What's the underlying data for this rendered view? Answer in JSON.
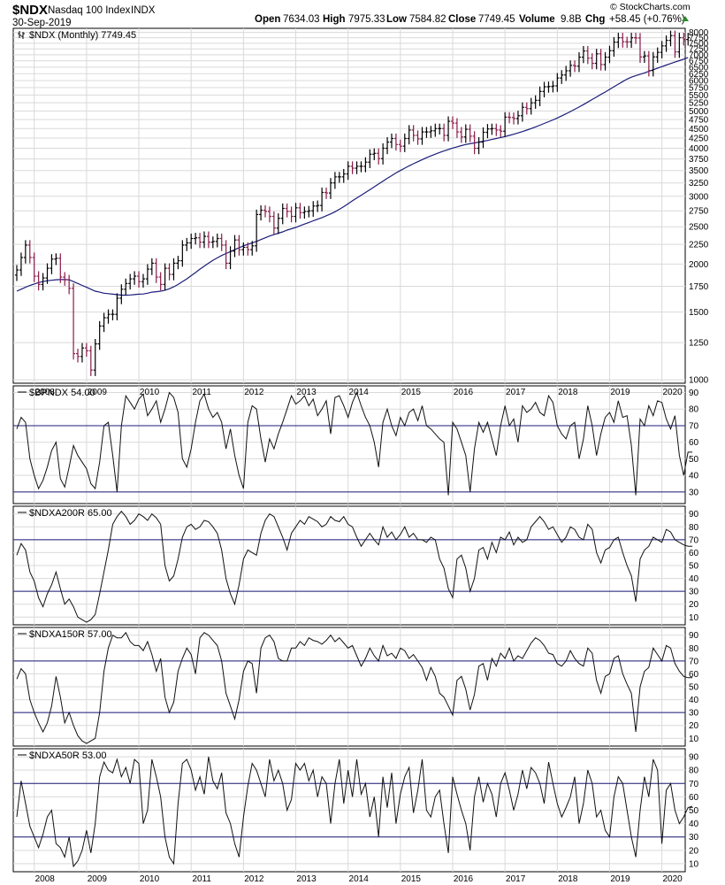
{
  "header": {
    "symbol": "$NDX",
    "name": "Nasdaq 100 Index",
    "exchange": "INDX",
    "date": "30-Sep-2019",
    "open_label": "Open",
    "open": "7634.03",
    "high_label": "High",
    "high": "7975.33",
    "low_label": "Low",
    "low": "7584.82",
    "close_label": "Close",
    "close": "7749.45",
    "volume_label": "Volume",
    "volume": "9.8B",
    "chg_label": "Chg",
    "chg": "+58.45 (+0.76%)",
    "watermark": "© StockCharts.com"
  },
  "colors": {
    "up_bar": "#000000",
    "down_bar": "#8b1a4a",
    "ma_line": "#1c1c7a",
    "ref_lines": "#1c1c7a",
    "grid": "#d9d9d9",
    "chg_arrow": "#2e8b2e"
  },
  "x_axis_years": [
    "2008",
    "2009",
    "2010",
    "2011",
    "2012",
    "2013",
    "2014",
    "2015",
    "2016",
    "2017",
    "2018",
    "2019",
    "2020"
  ],
  "chart_data": [
    {
      "id": "price",
      "type": "ohlc",
      "legend": "$NDX (Monthly) 7749.45",
      "y_scale": "log",
      "ylim": [
        980,
        8200
      ],
      "y_ticks": [
        1000,
        1250,
        1500,
        1750,
        2000,
        2250,
        2500,
        2750,
        3000,
        3250,
        3500,
        3750,
        4000,
        4250,
        4500,
        4750,
        5000,
        5250,
        5500,
        5750,
        6000,
        6250,
        6500,
        6750,
        7000,
        7250,
        7500,
        7750,
        8000
      ],
      "x_start": "2007-09",
      "close": [
        1930,
        2080,
        2240,
        2080,
        1860,
        1770,
        1840,
        1950,
        2060,
        2070,
        1850,
        1820,
        1730,
        1170,
        1150,
        1210,
        1190,
        1060,
        1240,
        1380,
        1450,
        1480,
        1480,
        1630,
        1720,
        1780,
        1830,
        1860,
        1800,
        1830,
        1940,
        2010,
        1850,
        1770,
        1950,
        1880,
        2010,
        2040,
        2240,
        2270,
        2330,
        2340,
        2280,
        2360,
        2280,
        2290,
        2330,
        2240,
        2010,
        2160,
        2310,
        2180,
        2210,
        2180,
        2230,
        2690,
        2760,
        2740,
        2660,
        2480,
        2630,
        2790,
        2740,
        2660,
        2800,
        2720,
        2740,
        2750,
        2830,
        2840,
        3070,
        3060,
        3250,
        3370,
        3370,
        3430,
        3590,
        3550,
        3590,
        3590,
        3680,
        3860,
        3880,
        3760,
        4000,
        4150,
        4240,
        4090,
        4050,
        4240,
        4460,
        4320,
        4230,
        4410,
        4410,
        4440,
        4500,
        4500,
        4320,
        4700,
        4650,
        4410,
        4280,
        4480,
        4300,
        4000,
        4150,
        4400,
        4490,
        4500,
        4460,
        4430,
        4820,
        4810,
        4780,
        4860,
        5110,
        5070,
        5250,
        5330,
        5620,
        5780,
        5790,
        5810,
        6090,
        6200,
        6360,
        6570,
        6540,
        6900,
        7160,
        6860,
        6650,
        7040,
        6600,
        6900,
        7170,
        7550,
        7750,
        7570,
        7560,
        7750,
        7740,
        6910,
        6950,
        6370,
        6910,
        7100,
        7380,
        7630,
        7850,
        7120,
        7750,
        7670,
        7750
      ],
      "ma": [
        1700,
        1720,
        1740,
        1760,
        1775,
        1790,
        1800,
        1810,
        1815,
        1820,
        1822,
        1823,
        1820,
        1800,
        1780,
        1760,
        1740,
        1720,
        1700,
        1690,
        1680,
        1675,
        1670,
        1665,
        1660,
        1660,
        1662,
        1665,
        1670,
        1672,
        1680,
        1690,
        1695,
        1700,
        1710,
        1725,
        1745,
        1770,
        1800,
        1830,
        1865,
        1900,
        1940,
        1975,
        2010,
        2045,
        2075,
        2105,
        2130,
        2155,
        2180,
        2205,
        2230,
        2250,
        2270,
        2290,
        2315,
        2340,
        2365,
        2385,
        2405,
        2425,
        2450,
        2470,
        2490,
        2515,
        2540,
        2565,
        2590,
        2615,
        2640,
        2670,
        2700,
        2735,
        2775,
        2820,
        2870,
        2920,
        2970,
        3020,
        3070,
        3120,
        3175,
        3230,
        3285,
        3340,
        3395,
        3450,
        3500,
        3550,
        3600,
        3645,
        3690,
        3735,
        3780,
        3820,
        3860,
        3900,
        3935,
        3970,
        4005,
        4035,
        4065,
        4090,
        4110,
        4130,
        4150,
        4170,
        4190,
        4215,
        4240,
        4265,
        4290,
        4320,
        4350,
        4385,
        4420,
        4460,
        4500,
        4545,
        4590,
        4640,
        4690,
        4740,
        4795,
        4855,
        4915,
        4980,
        5050,
        5120,
        5195,
        5275,
        5355,
        5435,
        5520,
        5600,
        5690,
        5780,
        5870,
        5960,
        6050,
        6120,
        6180,
        6230,
        6280,
        6340,
        6400,
        6460,
        6520,
        6580,
        6640,
        6700,
        6760,
        6820,
        6880
      ],
      "series_note": "OHLC bars per month; red bars are down months"
    },
    {
      "id": "bpndx",
      "type": "line",
      "legend": "$BPNDX 54.00",
      "ylim": [
        23,
        94
      ],
      "y_ticks": [
        30,
        40,
        50,
        60,
        70,
        80,
        90
      ],
      "ref_lines": [
        70,
        30
      ],
      "values": [
        68,
        75,
        72,
        50,
        40,
        32,
        37,
        45,
        55,
        60,
        38,
        33,
        45,
        58,
        52,
        48,
        44,
        35,
        32,
        48,
        70,
        72,
        52,
        30,
        70,
        88,
        84,
        80,
        86,
        89,
        76,
        80,
        85,
        72,
        80,
        90,
        87,
        78,
        50,
        45,
        56,
        72,
        85,
        89,
        80,
        75,
        78,
        72,
        56,
        68,
        52,
        40,
        32,
        72,
        82,
        80,
        62,
        48,
        62,
        56,
        65,
        72,
        80,
        88,
        83,
        85,
        88,
        82,
        86,
        76,
        80,
        85,
        65,
        87,
        88,
        82,
        75,
        84,
        90,
        82,
        75,
        70,
        60,
        45,
        72,
        80,
        70,
        64,
        75,
        70,
        78,
        80,
        73,
        82,
        70,
        68,
        65,
        62,
        60,
        28,
        72,
        68,
        60,
        52,
        30,
        56,
        72,
        66,
        72,
        62,
        52,
        70,
        82,
        70,
        74,
        60,
        82,
        78,
        80,
        84,
        78,
        76,
        88,
        84,
        70,
        65,
        62,
        70,
        72,
        50,
        62,
        82,
        70,
        52,
        65,
        75,
        78,
        72,
        85,
        75,
        76,
        58,
        28,
        74,
        70,
        82,
        76,
        85,
        84,
        74,
        68,
        76,
        52,
        40,
        54,
        54
      ]
    },
    {
      "id": "ndxa200r",
      "type": "line",
      "legend": "$NDXA200R 65.00",
      "ylim": [
        4,
        96
      ],
      "y_ticks": [
        10,
        20,
        30,
        40,
        50,
        60,
        70,
        80,
        90
      ],
      "ref_lines": [
        70,
        30
      ],
      "values": [
        58,
        67,
        62,
        45,
        38,
        25,
        18,
        28,
        35,
        45,
        32,
        20,
        24,
        18,
        10,
        8,
        6,
        8,
        12,
        28,
        45,
        62,
        82,
        88,
        92,
        88,
        82,
        85,
        90,
        88,
        85,
        90,
        87,
        82,
        50,
        38,
        42,
        55,
        72,
        80,
        82,
        78,
        80,
        85,
        84,
        80,
        75,
        62,
        40,
        28,
        20,
        35,
        55,
        62,
        60,
        58,
        75,
        85,
        90,
        88,
        80,
        72,
        62,
        75,
        80,
        85,
        82,
        88,
        86,
        84,
        80,
        82,
        88,
        85,
        84,
        88,
        82,
        80,
        72,
        65,
        70,
        75,
        70,
        66,
        80,
        72,
        76,
        70,
        74,
        80,
        72,
        75,
        70,
        70,
        68,
        72,
        70,
        55,
        48,
        32,
        25,
        55,
        58,
        48,
        30,
        40,
        62,
        64,
        55,
        68,
        60,
        72,
        70,
        76,
        66,
        72,
        68,
        70,
        80,
        84,
        88,
        84,
        78,
        80,
        74,
        68,
        72,
        80,
        78,
        72,
        70,
        82,
        78,
        60,
        52,
        62,
        64,
        70,
        72,
        60,
        50,
        42,
        22,
        55,
        62,
        65,
        72,
        70,
        68,
        78,
        76,
        70,
        68,
        66,
        65,
        65
      ]
    },
    {
      "id": "ndxa150r",
      "type": "line",
      "legend": "$NDXA150R 57.00",
      "ylim": [
        4,
        96
      ],
      "y_ticks": [
        10,
        20,
        30,
        40,
        50,
        60,
        70,
        80,
        90
      ],
      "ref_lines": [
        70,
        30
      ],
      "values": [
        56,
        64,
        60,
        40,
        30,
        22,
        15,
        22,
        35,
        58,
        42,
        22,
        30,
        20,
        12,
        8,
        6,
        8,
        10,
        30,
        62,
        80,
        90,
        88,
        88,
        92,
        85,
        82,
        82,
        78,
        85,
        75,
        62,
        72,
        42,
        30,
        38,
        62,
        72,
        80,
        75,
        60,
        88,
        92,
        90,
        86,
        82,
        70,
        45,
        35,
        25,
        40,
        62,
        70,
        68,
        45,
        80,
        88,
        90,
        85,
        72,
        70,
        70,
        80,
        80,
        85,
        82,
        88,
        86,
        85,
        83,
        86,
        90,
        85,
        88,
        84,
        80,
        82,
        74,
        66,
        72,
        80,
        74,
        70,
        82,
        74,
        76,
        72,
        80,
        78,
        72,
        75,
        70,
        65,
        55,
        65,
        58,
        45,
        42,
        35,
        28,
        55,
        58,
        48,
        32,
        44,
        66,
        68,
        55,
        72,
        66,
        76,
        72,
        80,
        70,
        74,
        72,
        78,
        84,
        88,
        86,
        82,
        76,
        75,
        68,
        66,
        70,
        78,
        72,
        68,
        66,
        80,
        76,
        55,
        45,
        58,
        60,
        72,
        74,
        60,
        52,
        45,
        15,
        50,
        62,
        65,
        80,
        75,
        70,
        82,
        80,
        68,
        62,
        58,
        57,
        57
      ]
    },
    {
      "id": "ndxa50r",
      "type": "line",
      "legend": "$NDXA50R 53.00",
      "ylim": [
        4,
        96
      ],
      "y_ticks": [
        10,
        20,
        30,
        40,
        50,
        60,
        70,
        80,
        90
      ],
      "ref_lines": [
        70,
        30
      ],
      "values": [
        45,
        72,
        55,
        38,
        30,
        22,
        32,
        45,
        50,
        25,
        22,
        15,
        30,
        8,
        12,
        20,
        35,
        18,
        40,
        75,
        86,
        80,
        78,
        88,
        75,
        82,
        70,
        88,
        85,
        40,
        50,
        88,
        75,
        60,
        30,
        15,
        10,
        55,
        85,
        88,
        80,
        65,
        75,
        62,
        90,
        72,
        66,
        78,
        48,
        40,
        25,
        15,
        45,
        68,
        85,
        80,
        70,
        60,
        88,
        72,
        80,
        70,
        50,
        58,
        85,
        80,
        85,
        72,
        80,
        60,
        75,
        70,
        40,
        70,
        88,
        55,
        80,
        60,
        88,
        62,
        70,
        45,
        60,
        30,
        75,
        52,
        78,
        40,
        62,
        75,
        82,
        48,
        65,
        88,
        50,
        45,
        60,
        65,
        40,
        18,
        75,
        62,
        50,
        40,
        20,
        60,
        75,
        56,
        70,
        62,
        45,
        70,
        78,
        65,
        50,
        62,
        80,
        66,
        82,
        78,
        70,
        55,
        86,
        70,
        55,
        45,
        52,
        60,
        75,
        40,
        55,
        80,
        70,
        45,
        50,
        35,
        30,
        60,
        75,
        70,
        50,
        30,
        15,
        50,
        75,
        60,
        88,
        80,
        25,
        65,
        70,
        50,
        40,
        45,
        52,
        53
      ]
    }
  ]
}
